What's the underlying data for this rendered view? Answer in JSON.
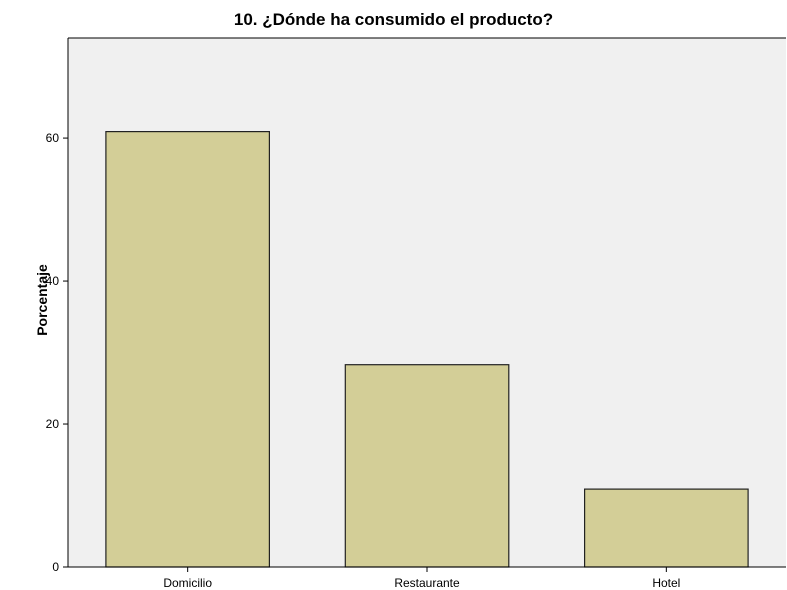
{
  "chart_data": {
    "type": "bar",
    "title": "10. ¿Dónde ha consumido el producto?",
    "xlabel": "",
    "ylabel": "Porcentaje",
    "categories": [
      "Domicilio",
      "Restaurante",
      "Hotel"
    ],
    "values": [
      60.9,
      28.3,
      10.9
    ],
    "ylim": [
      0,
      74
    ],
    "yticks": [
      0,
      20,
      40,
      60
    ],
    "grid": false,
    "colors": {
      "plot_background": "#f0f0f0",
      "bar_fill": "#d3ce97",
      "bar_stroke": "#222222"
    }
  }
}
